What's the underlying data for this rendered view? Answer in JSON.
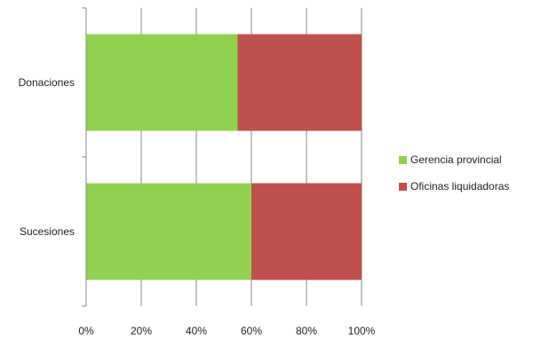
{
  "chart_data": {
    "type": "bar",
    "orientation": "horizontal",
    "stacked": "percent",
    "title": "",
    "xlabel": "",
    "ylabel": "",
    "categories": [
      "Donaciones",
      "Sucesiones"
    ],
    "series": [
      {
        "name": "Gerencia provincial",
        "color": "#92d050",
        "values": [
          55,
          60
        ]
      },
      {
        "name": "Oficinas liquidadoras",
        "color": "#c0504d",
        "values": [
          45,
          40
        ]
      }
    ],
    "xlim": [
      0,
      100
    ],
    "xticks": [
      "0%",
      "20%",
      "40%",
      "60%",
      "80%",
      "100%"
    ],
    "grid": "vertical",
    "legend_position": "right"
  }
}
